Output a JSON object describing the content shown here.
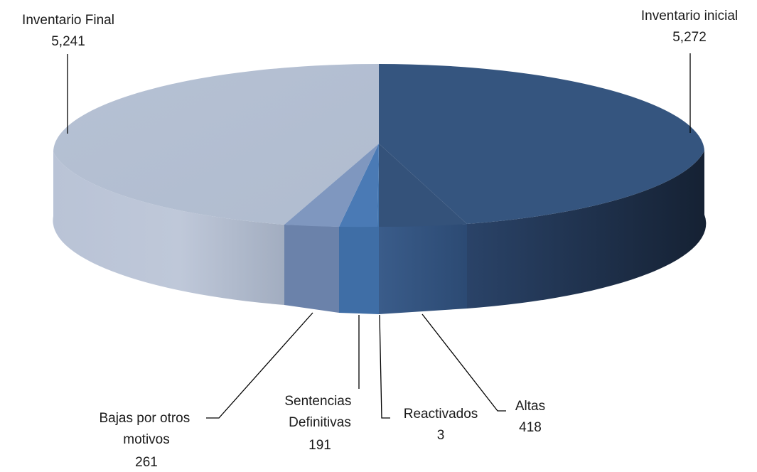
{
  "chart_data": {
    "type": "pie",
    "style": "3d",
    "slices": [
      {
        "label": "Inventario inicial",
        "value_text": "5,272",
        "value": 5272,
        "color": "#35557f"
      },
      {
        "label": "Altas",
        "value_text": "418",
        "value": 418,
        "color": "#34527a"
      },
      {
        "label": "Reactivados",
        "value_text": "3",
        "value": 3,
        "color": "#4274ad"
      },
      {
        "label": "Sentencias Definitivas",
        "value_text": "191",
        "value": 191,
        "color": "#4a7ab5"
      },
      {
        "label": "Bajas por otros motivos",
        "value_text": "261",
        "value": 261,
        "color": "#7f97bf"
      },
      {
        "label": "Inventario Final",
        "value_text": "5,241",
        "value": 5241,
        "color": "#b3bfd3"
      }
    ],
    "legend": "none"
  }
}
